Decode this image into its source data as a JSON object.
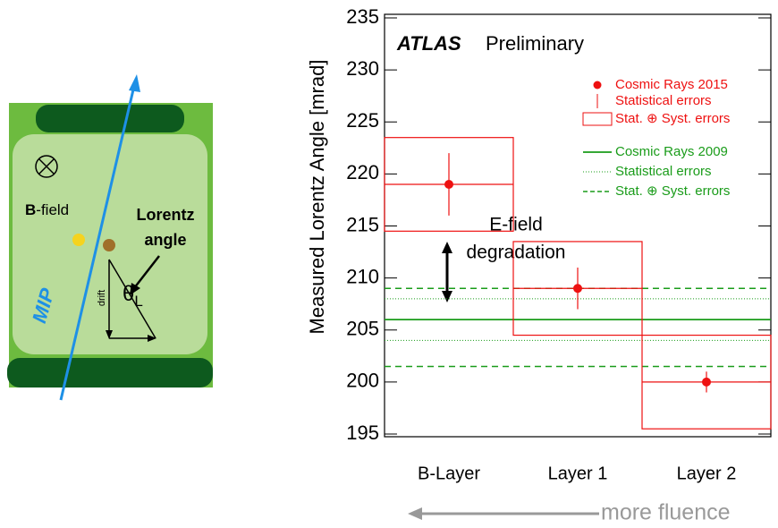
{
  "chart_data": {
    "type": "errorbar",
    "title_bold": "ATLAS",
    "title": "Preliminary",
    "y_label": "Measured Lorentz Angle [mrad]",
    "categories": [
      "B-Layer",
      "Layer 1",
      "Layer 2"
    ],
    "ylim": [
      195,
      235
    ],
    "yticks": [
      195,
      200,
      205,
      210,
      215,
      220,
      225,
      230,
      235
    ],
    "series": [
      {
        "name": "Cosmic Rays 2015",
        "color": "#ee1111",
        "stat_label": "Statistical errors",
        "syst_label": "Stat. ⊕ Syst. errors",
        "values": [
          219,
          209,
          200
        ],
        "stat_errors": [
          3,
          2,
          1
        ],
        "syst_errors": [
          4.5,
          4.5,
          4.5
        ]
      },
      {
        "name": "Cosmic Rays 2009",
        "color": "#1a9c1a",
        "stat_label": "Statistical errors",
        "syst_label": "Stat. ⊕ Syst. errors",
        "value": 206,
        "stat_range": [
          204,
          208
        ],
        "syst_range": [
          201.5,
          209
        ]
      }
    ],
    "annotations": [
      "E-field",
      "degradation"
    ],
    "fluence_label": "more fluence"
  },
  "diagram": {
    "b_field": {
      "bold": "B",
      "rest": "-field"
    },
    "lorentz": "Lorentz",
    "angle": "angle",
    "mip": "MIP",
    "drift": "drift",
    "theta": "θ",
    "theta_sub": "L"
  }
}
